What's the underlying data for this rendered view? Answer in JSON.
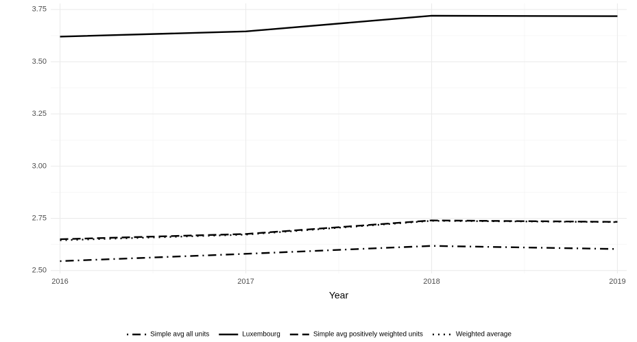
{
  "chart_data": {
    "type": "line",
    "x_label": "Year",
    "x": [
      2016,
      2017,
      2018,
      2019
    ],
    "xlim": [
      2015.95,
      2019.05
    ],
    "xticks": [
      2016,
      2017,
      2018,
      2019
    ],
    "ylim": [
      2.486,
      3.779
    ],
    "yticks": [
      {
        "value": 2.5,
        "label": "2.50"
      },
      {
        "value": 2.75,
        "label": "2.75"
      },
      {
        "value": 3,
        "label": "3.00"
      },
      {
        "value": 3.25,
        "label": "3.25"
      },
      {
        "value": 3.5,
        "label": "3.50"
      },
      {
        "value": 3.75,
        "label": "3.75"
      }
    ],
    "grid": true,
    "legend": "bottom",
    "series": [
      {
        "name": "Simple avg all units",
        "color": "#000000",
        "linestyle": "dashdot",
        "values": [
          2.545,
          2.58,
          2.618,
          2.603
        ]
      },
      {
        "name": "Luxembourg",
        "color": "#000000",
        "linestyle": "solid",
        "values": [
          3.62,
          3.645,
          3.72,
          3.718
        ]
      },
      {
        "name": "Simple avg positively weighted units",
        "color": "#000000",
        "linestyle": "dashed",
        "values": [
          2.65,
          2.675,
          2.74,
          2.733
        ]
      },
      {
        "name": "Weighted average",
        "color": "#000000",
        "linestyle": "dotted",
        "values": [
          2.645,
          2.672,
          2.738,
          2.732
        ]
      }
    ]
  }
}
